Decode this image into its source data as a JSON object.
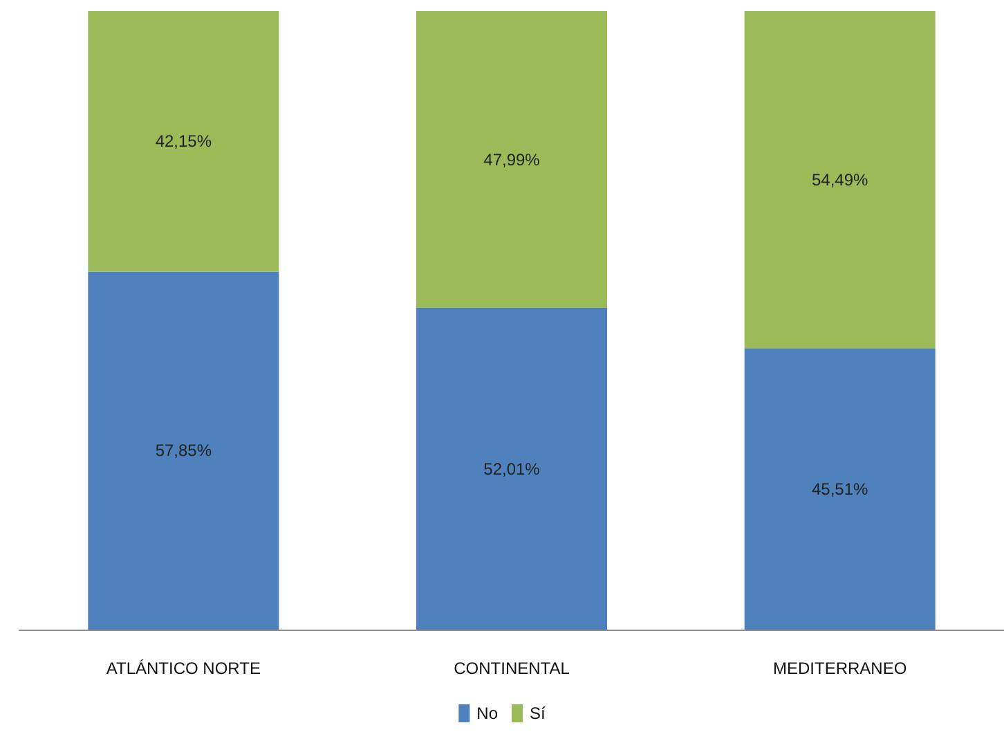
{
  "chart_data": {
    "type": "bar",
    "stacked": true,
    "categories": [
      "ATLÁNTICO NORTE",
      "CONTINENTAL",
      "MEDITERRANEO"
    ],
    "series": [
      {
        "name": "No",
        "color": "#4f81bd",
        "values": [
          57.85,
          52.01,
          45.51
        ],
        "value_labels": [
          "57,85%",
          "52,01%",
          "45,51%"
        ]
      },
      {
        "name": "Sí",
        "color": "#9bbb59",
        "values": [
          42.15,
          47.99,
          54.49
        ],
        "value_labels": [
          "42,15%",
          "47,99%",
          "54,49%"
        ]
      }
    ],
    "ylim": [
      0,
      100
    ],
    "tick_labels": "x",
    "legend": "bottom"
  }
}
